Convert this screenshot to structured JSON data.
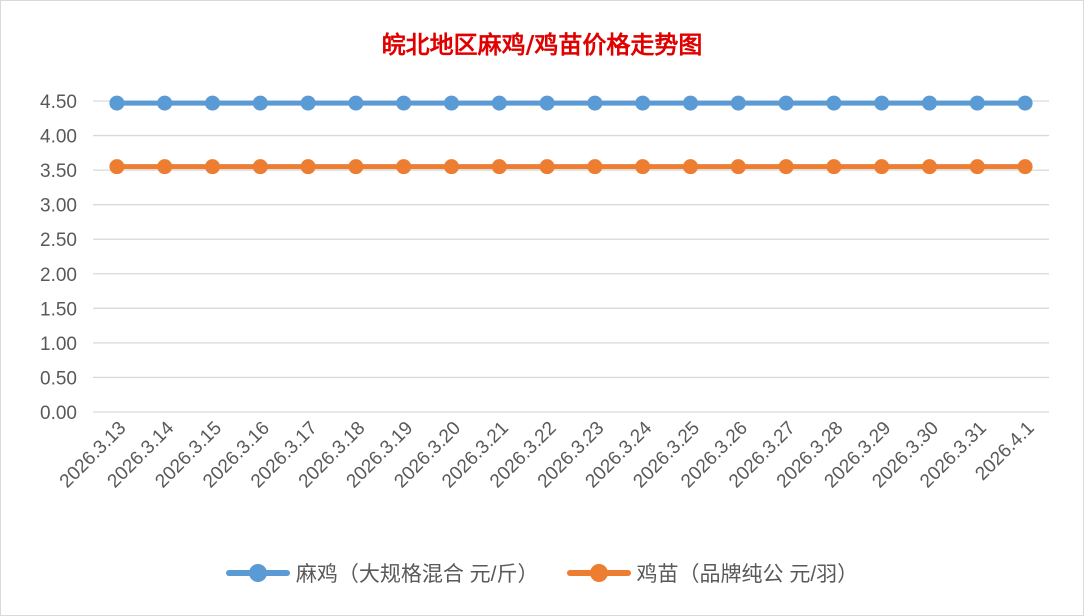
{
  "chart_data": {
    "type": "line",
    "title": "皖北地区麻鸡/鸡苗价格走势图",
    "categories": [
      "2026.3.13",
      "2026.3.14",
      "2026.3.15",
      "2026.3.16",
      "2026.3.17",
      "2026.3.18",
      "2026.3.19",
      "2026.3.20",
      "2026.3.21",
      "2026.3.22",
      "2026.3.23",
      "2026.3.24",
      "2026.3.25",
      "2026.3.26",
      "2026.3.27",
      "2026.3.28",
      "2026.3.29",
      "2026.3.30",
      "2026.3.31",
      "2026.4.1"
    ],
    "series": [
      {
        "name": "麻鸡（大规格混合 元/斤）",
        "color": "#5b9bd5",
        "values": [
          4.47,
          4.47,
          4.47,
          4.47,
          4.47,
          4.47,
          4.47,
          4.47,
          4.47,
          4.47,
          4.47,
          4.47,
          4.47,
          4.47,
          4.47,
          4.47,
          4.47,
          4.47,
          4.47,
          4.47
        ]
      },
      {
        "name": "鸡苗（品牌纯公 元/羽）",
        "color": "#ed7d31",
        "values": [
          3.55,
          3.55,
          3.55,
          3.55,
          3.55,
          3.55,
          3.55,
          3.55,
          3.55,
          3.55,
          3.55,
          3.55,
          3.55,
          3.55,
          3.55,
          3.55,
          3.55,
          3.55,
          3.55,
          3.55
        ]
      }
    ],
    "yticks": [
      "0.00",
      "0.50",
      "1.00",
      "1.50",
      "2.00",
      "2.50",
      "3.00",
      "3.50",
      "4.00",
      "4.50"
    ],
    "ylim": [
      0,
      4.5
    ],
    "grid": true,
    "legend": "bottom",
    "xlabel": "",
    "ylabel": ""
  }
}
